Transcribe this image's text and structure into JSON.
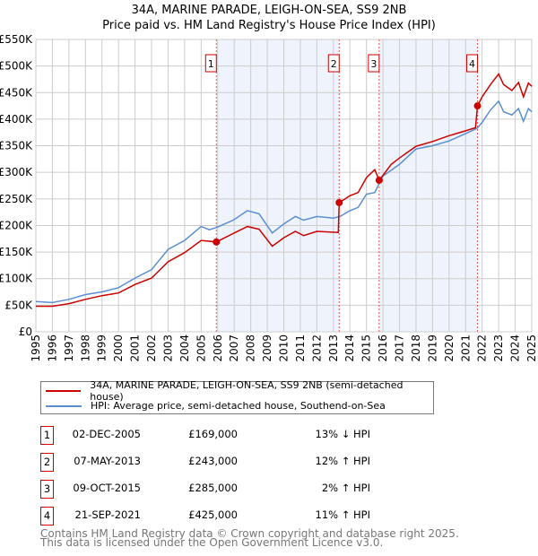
{
  "title": "34A, MARINE PARADE, LEIGH-ON-SEA, SS9 2NB",
  "subtitle": "Price paid vs. HM Land Registry's House Price Index (HPI)",
  "chart_data": {
    "type": "line",
    "xlim": [
      1995,
      2025
    ],
    "ylim": [
      0,
      550000
    ],
    "y_ticks": [
      0,
      50000,
      100000,
      150000,
      200000,
      250000,
      300000,
      350000,
      400000,
      450000,
      500000,
      550000
    ],
    "y_tick_labels": [
      "£0",
      "£50K",
      "£100K",
      "£150K",
      "£200K",
      "£250K",
      "£300K",
      "£350K",
      "£400K",
      "£450K",
      "£500K",
      "£550K"
    ],
    "x_ticks": [
      1995,
      1996,
      1997,
      1998,
      1999,
      2000,
      2001,
      2002,
      2003,
      2004,
      2005,
      2006,
      2007,
      2008,
      2009,
      2010,
      2011,
      2012,
      2013,
      2014,
      2015,
      2016,
      2017,
      2018,
      2019,
      2020,
      2021,
      2022,
      2023,
      2024,
      2025
    ],
    "x_tick_labels": [
      "1995",
      "1996",
      "1997",
      "1998",
      "1999",
      "2000",
      "2001",
      "2002",
      "2003",
      "2004",
      "2005",
      "2006",
      "2007",
      "2008",
      "2009",
      "2010",
      "2011",
      "2012",
      "2013",
      "2014",
      "2015",
      "2016",
      "2017",
      "2018",
      "2019",
      "2020",
      "2021",
      "2022",
      "2023",
      "2024",
      "2025"
    ],
    "grid": true,
    "shaded_ranges": [
      [
        2005.92,
        2013.35
      ],
      [
        2015.77,
        2021.72
      ]
    ],
    "series": [
      {
        "name": "34A, MARINE PARADE, LEIGH-ON-SEA, SS9 2NB (semi-detached house)",
        "color": "#cc0000",
        "x": [
          1995,
          1996,
          1997,
          1998,
          1999,
          2000,
          2001,
          2002,
          2003,
          2004,
          2005,
          2005.92,
          2007,
          2007.8,
          2008.5,
          2009.3,
          2010,
          2010.7,
          2011.2,
          2012,
          2013.3,
          2013.35,
          2014,
          2014.5,
          2015,
          2015.5,
          2015.77,
          2016.5,
          2017,
          2018,
          2019,
          2020,
          2021,
          2021.6,
          2021.72,
          2022,
          2022.5,
          2023,
          2023.3,
          2023.8,
          2024.2,
          2024.5,
          2024.8,
          2025
        ],
        "y": [
          48000,
          48000,
          53000,
          61000,
          68000,
          73000,
          89000,
          101000,
          132000,
          149000,
          172000,
          169000,
          186000,
          198000,
          193000,
          161000,
          177000,
          189000,
          181000,
          189000,
          187000,
          243000,
          256000,
          262000,
          290000,
          305000,
          285000,
          315000,
          327000,
          349000,
          358000,
          369000,
          378000,
          384000,
          425000,
          442000,
          465000,
          485000,
          465000,
          454000,
          469000,
          442000,
          468000,
          462000
        ]
      },
      {
        "name": "HPI: Average price, semi-detached house, Southend-on-Sea",
        "color": "#5b8fd0",
        "x": [
          1995,
          1996,
          1997,
          1998,
          1999,
          2000,
          2001,
          2002,
          2003,
          2004,
          2005,
          2005.5,
          2006,
          2007,
          2007.8,
          2008.5,
          2009.3,
          2010,
          2010.7,
          2011.2,
          2012,
          2013,
          2013.4,
          2014,
          2014.5,
          2015,
          2015.5,
          2016,
          2017,
          2018,
          2019,
          2020,
          2021,
          2021.7,
          2022,
          2022.5,
          2023,
          2023.3,
          2023.8,
          2024.2,
          2024.5,
          2024.8,
          2025
        ],
        "y": [
          57000,
          55000,
          61000,
          70000,
          75000,
          83000,
          101000,
          117000,
          155000,
          172000,
          198000,
          192000,
          197000,
          211000,
          228000,
          222000,
          186000,
          203000,
          217000,
          210000,
          217000,
          214000,
          217000,
          228000,
          234000,
          259000,
          262000,
          293000,
          315000,
          344000,
          350000,
          359000,
          373000,
          383000,
          394000,
          417000,
          434000,
          414000,
          408000,
          420000,
          396000,
          420000,
          414000
        ]
      }
    ],
    "sales": [
      {
        "label": "1",
        "x": 2005.92,
        "y": 169000
      },
      {
        "label": "2",
        "x": 2013.35,
        "y": 243000
      },
      {
        "label": "3",
        "x": 2015.77,
        "y": 285000
      },
      {
        "label": "4",
        "x": 2021.72,
        "y": 425000
      }
    ]
  },
  "legend": {
    "property": "34A, MARINE PARADE, LEIGH-ON-SEA, SS9 2NB (semi-detached house)",
    "hpi": "HPI: Average price, semi-detached house, Southend-on-Sea"
  },
  "transactions": [
    {
      "num": "1",
      "date": "02-DEC-2005",
      "price": "£169,000",
      "hpi": "13% ↓ HPI"
    },
    {
      "num": "2",
      "date": "07-MAY-2013",
      "price": "£243,000",
      "hpi": "12% ↑ HPI"
    },
    {
      "num": "3",
      "date": "09-OCT-2015",
      "price": "£285,000",
      "hpi": "2% ↑ HPI"
    },
    {
      "num": "4",
      "date": "21-SEP-2021",
      "price": "£425,000",
      "hpi": "11% ↑ HPI"
    }
  ],
  "footer": {
    "line1": "Contains HM Land Registry data © Crown copyright and database right 2025.",
    "line2": "This data is licensed under the Open Government Licence v3.0."
  }
}
